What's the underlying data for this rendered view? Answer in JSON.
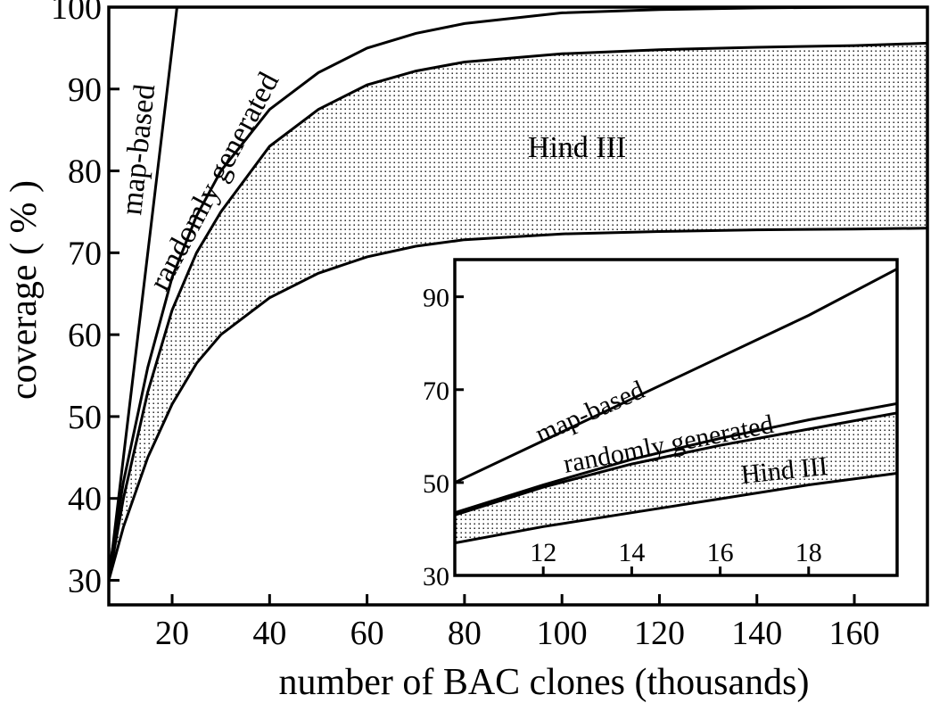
{
  "chart_data": [
    {
      "type": "line",
      "xlabel": "number of BAC clones (thousands)",
      "ylabel": "coverage ( % )",
      "xlim": [
        7,
        175
      ],
      "ylim": [
        27,
        100
      ],
      "x_ticks": [
        20,
        40,
        60,
        80,
        100,
        120,
        140,
        160
      ],
      "y_ticks": [
        30,
        40,
        50,
        60,
        70,
        80,
        90,
        100
      ],
      "grid": false,
      "shaded_band": {
        "label": "Hind III",
        "fill": "dotted",
        "between": [
          "upper",
          "lower"
        ]
      },
      "annotations": [
        "map-based",
        "randomly generated",
        "Hind III"
      ],
      "series": [
        {
          "name": "map-based",
          "x": [
            7,
            10,
            13,
            16,
            19,
            21
          ],
          "y": [
            30,
            45,
            60,
            75,
            90,
            100
          ]
        },
        {
          "name": "randomly generated",
          "x": [
            7,
            10,
            15,
            20,
            25,
            30,
            40,
            50,
            60,
            70,
            80,
            100,
            120,
            140,
            160,
            175
          ],
          "y": [
            31,
            42,
            56,
            67,
            74.5,
            80,
            87.5,
            92,
            95,
            96.8,
            98,
            99.3,
            99.7,
            99.9,
            100,
            100
          ]
        },
        {
          "name": "upper",
          "x": [
            7,
            10,
            15,
            20,
            25,
            30,
            40,
            50,
            60,
            70,
            80,
            100,
            120,
            140,
            160,
            175
          ],
          "y": [
            30,
            40,
            53,
            63,
            70,
            75,
            83,
            87.5,
            90.5,
            92.2,
            93.3,
            94.3,
            94.8,
            95.1,
            95.3,
            95.6
          ]
        },
        {
          "name": "lower",
          "x": [
            7,
            10,
            15,
            20,
            25,
            30,
            40,
            50,
            60,
            70,
            80,
            100,
            120,
            140,
            160,
            175
          ],
          "y": [
            30,
            36.5,
            45,
            51.5,
            56.5,
            60,
            64.5,
            67.5,
            69.5,
            70.8,
            71.6,
            72.3,
            72.6,
            72.8,
            72.9,
            73
          ]
        }
      ]
    },
    {
      "type": "line",
      "xlim": [
        10,
        20
      ],
      "ylim": [
        30,
        98
      ],
      "x_ticks": [
        12,
        14,
        16,
        18
      ],
      "y_ticks": [
        30,
        50,
        70,
        90
      ],
      "grid": false,
      "position": "bottom-right inset",
      "shaded_band": {
        "label": "Hind III",
        "fill": "dotted",
        "between": [
          "upper",
          "lower"
        ]
      },
      "annotations": [
        "map-based",
        "randomly generated",
        "Hind III"
      ],
      "series": [
        {
          "name": "map-based",
          "x": [
            10,
            12,
            14,
            16,
            18,
            20
          ],
          "y": [
            50,
            59,
            68,
            77,
            86,
            96
          ]
        },
        {
          "name": "randomly generated",
          "x": [
            10,
            12,
            14,
            16,
            18,
            20
          ],
          "y": [
            43.5,
            49.5,
            55,
            59.5,
            63.5,
            67
          ]
        },
        {
          "name": "upper",
          "x": [
            10,
            12,
            14,
            16,
            18,
            20
          ],
          "y": [
            43,
            49,
            54,
            58,
            61.5,
            65
          ]
        },
        {
          "name": "lower",
          "x": [
            10,
            12,
            14,
            16,
            18,
            20
          ],
          "y": [
            37,
            40.5,
            43.5,
            46.5,
            49.5,
            52
          ]
        }
      ]
    }
  ]
}
